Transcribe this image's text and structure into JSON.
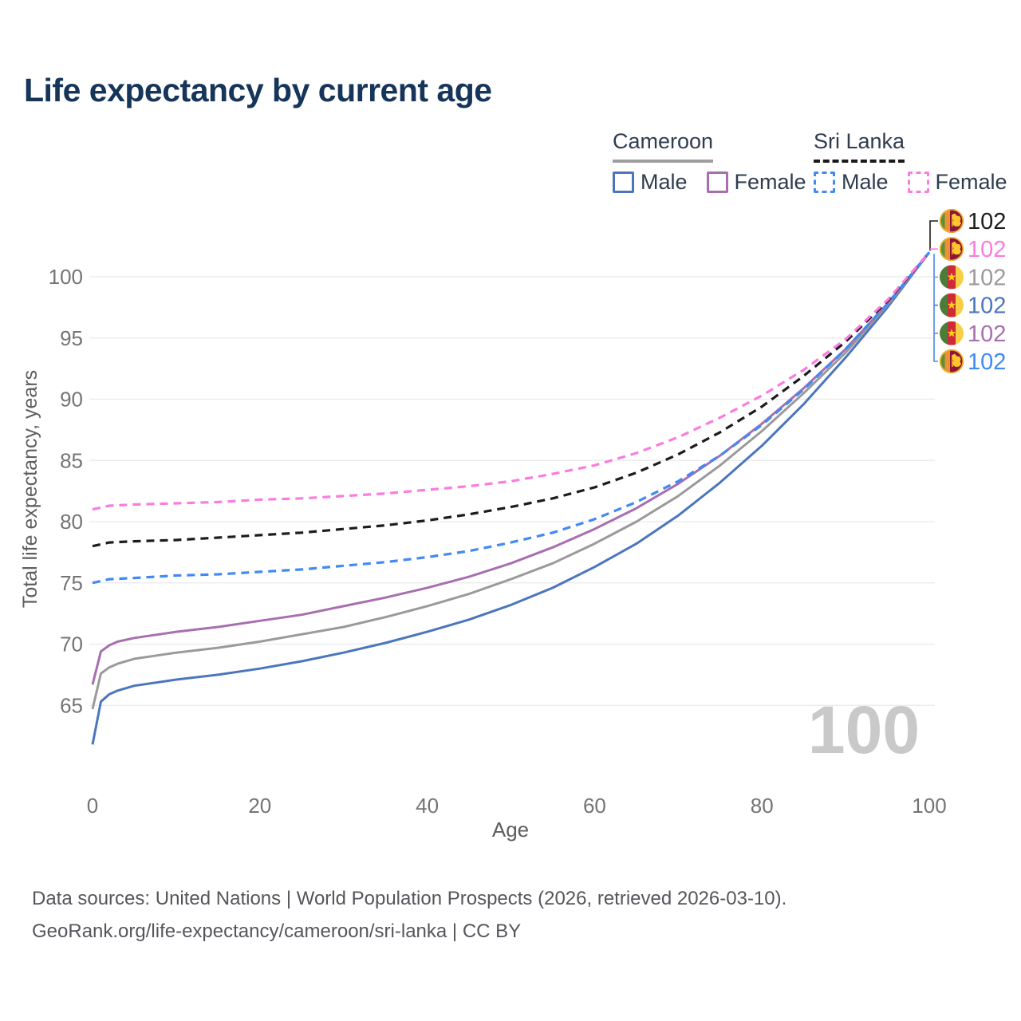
{
  "title": "Life expectancy by current age",
  "legend": {
    "groups": [
      {
        "label": "Cameroon",
        "underline_style": "solid",
        "underline_color": "#9e9e9e",
        "items": [
          {
            "label": "Male",
            "color": "#4b76bd",
            "dashed": false
          },
          {
            "label": "Female",
            "color": "#a86fb0",
            "dashed": false
          }
        ]
      },
      {
        "label": "Sri Lanka",
        "underline_style": "dashed",
        "underline_color": "#1a1a1a",
        "items": [
          {
            "label": "Male",
            "color": "#4189f5",
            "dashed": true
          },
          {
            "label": "Female",
            "color": "#fb7cdd",
            "dashed": true
          }
        ]
      }
    ]
  },
  "chart_data": {
    "type": "line",
    "title": "Life expectancy by current age",
    "xlabel": "Age",
    "ylabel": "Total life expectancy, years",
    "x_ticks": [
      0,
      20,
      40,
      60,
      80,
      100
    ],
    "y_ticks": [
      65,
      70,
      75,
      80,
      85,
      90,
      95,
      100
    ],
    "xlim": [
      0,
      100
    ],
    "ylim": [
      61,
      103
    ],
    "grid": "horizontal-only",
    "legend_position": "top-right",
    "hover_age_label": "100",
    "grid_color": "#eaeaea",
    "tick_color": "#747474",
    "axis_title_color": "#5e5e5e",
    "hover_label_color": "#c9c9c9",
    "series": [
      {
        "id": "sri-lanka-total",
        "country": "Sri Lanka",
        "sex": "Total",
        "color": "#1c1c1c",
        "dashed": true,
        "z": 5,
        "flag": "sri-lanka",
        "end_label": "102",
        "label_row": 0,
        "points": [
          [
            0,
            78.0
          ],
          [
            2,
            78.3
          ],
          [
            5,
            78.4
          ],
          [
            10,
            78.5
          ],
          [
            15,
            78.7
          ],
          [
            20,
            78.9
          ],
          [
            25,
            79.1
          ],
          [
            30,
            79.4
          ],
          [
            35,
            79.7
          ],
          [
            40,
            80.1
          ],
          [
            45,
            80.6
          ],
          [
            50,
            81.2
          ],
          [
            55,
            81.9
          ],
          [
            60,
            82.8
          ],
          [
            65,
            84.0
          ],
          [
            70,
            85.5
          ],
          [
            75,
            87.3
          ],
          [
            80,
            89.4
          ],
          [
            85,
            91.9
          ],
          [
            90,
            94.7
          ],
          [
            95,
            98.0
          ],
          [
            100,
            102
          ]
        ]
      },
      {
        "id": "sri-lanka-female",
        "country": "Sri Lanka",
        "sex": "Female",
        "color": "#fb7cdd",
        "dashed": true,
        "z": 6,
        "flag": "sri-lanka",
        "end_label": "102",
        "label_row": 1,
        "points": [
          [
            0,
            81.0
          ],
          [
            2,
            81.3
          ],
          [
            5,
            81.4
          ],
          [
            10,
            81.5
          ],
          [
            15,
            81.6
          ],
          [
            20,
            81.8
          ],
          [
            25,
            81.9
          ],
          [
            30,
            82.1
          ],
          [
            35,
            82.3
          ],
          [
            40,
            82.6
          ],
          [
            45,
            82.9
          ],
          [
            50,
            83.3
          ],
          [
            55,
            83.9
          ],
          [
            60,
            84.6
          ],
          [
            65,
            85.6
          ],
          [
            70,
            86.9
          ],
          [
            75,
            88.5
          ],
          [
            80,
            90.3
          ],
          [
            85,
            92.4
          ],
          [
            90,
            94.9
          ],
          [
            95,
            98.1
          ],
          [
            100,
            102
          ]
        ]
      },
      {
        "id": "cameroon-total",
        "country": "Cameroon",
        "sex": "Total",
        "color": "#9a9a9a",
        "dashed": false,
        "z": 2,
        "flag": "cameroon",
        "end_label": "102",
        "label_row": 2,
        "points": [
          [
            0,
            64.7
          ],
          [
            1,
            67.6
          ],
          [
            2,
            68.1
          ],
          [
            3,
            68.4
          ],
          [
            5,
            68.8
          ],
          [
            8,
            69.1
          ],
          [
            10,
            69.3
          ],
          [
            15,
            69.7
          ],
          [
            20,
            70.2
          ],
          [
            25,
            70.8
          ],
          [
            30,
            71.4
          ],
          [
            35,
            72.2
          ],
          [
            40,
            73.1
          ],
          [
            45,
            74.1
          ],
          [
            50,
            75.3
          ],
          [
            55,
            76.6
          ],
          [
            60,
            78.2
          ],
          [
            65,
            80.0
          ],
          [
            70,
            82.1
          ],
          [
            75,
            84.6
          ],
          [
            80,
            87.4
          ],
          [
            85,
            90.5
          ],
          [
            90,
            93.8
          ],
          [
            95,
            97.7
          ],
          [
            100,
            102
          ]
        ]
      },
      {
        "id": "cameroon-male",
        "country": "Cameroon",
        "sex": "Male",
        "color": "#4b76bd",
        "dashed": false,
        "z": 1,
        "flag": "cameroon",
        "end_label": "102",
        "label_row": 3,
        "points": [
          [
            0,
            61.8
          ],
          [
            1,
            65.3
          ],
          [
            2,
            65.9
          ],
          [
            3,
            66.2
          ],
          [
            5,
            66.6
          ],
          [
            8,
            66.9
          ],
          [
            10,
            67.1
          ],
          [
            15,
            67.5
          ],
          [
            20,
            68.0
          ],
          [
            25,
            68.6
          ],
          [
            30,
            69.3
          ],
          [
            35,
            70.1
          ],
          [
            40,
            71.0
          ],
          [
            45,
            72.0
          ],
          [
            50,
            73.2
          ],
          [
            55,
            74.6
          ],
          [
            60,
            76.3
          ],
          [
            65,
            78.2
          ],
          [
            70,
            80.5
          ],
          [
            75,
            83.2
          ],
          [
            80,
            86.2
          ],
          [
            85,
            89.6
          ],
          [
            90,
            93.4
          ],
          [
            95,
            97.5
          ],
          [
            100,
            102
          ]
        ]
      },
      {
        "id": "cameroon-female",
        "country": "Cameroon",
        "sex": "Female",
        "color": "#a86fb0",
        "dashed": false,
        "z": 3,
        "flag": "cameroon",
        "end_label": "102",
        "label_row": 4,
        "points": [
          [
            0,
            66.7
          ],
          [
            1,
            69.4
          ],
          [
            2,
            69.9
          ],
          [
            3,
            70.2
          ],
          [
            5,
            70.5
          ],
          [
            8,
            70.8
          ],
          [
            10,
            71.0
          ],
          [
            15,
            71.4
          ],
          [
            20,
            71.9
          ],
          [
            25,
            72.4
          ],
          [
            30,
            73.1
          ],
          [
            35,
            73.8
          ],
          [
            40,
            74.6
          ],
          [
            45,
            75.5
          ],
          [
            50,
            76.6
          ],
          [
            55,
            77.9
          ],
          [
            60,
            79.4
          ],
          [
            65,
            81.1
          ],
          [
            70,
            83.1
          ],
          [
            75,
            85.4
          ],
          [
            80,
            88.0
          ],
          [
            85,
            90.9
          ],
          [
            90,
            94.1
          ],
          [
            95,
            97.8
          ],
          [
            100,
            102
          ]
        ]
      },
      {
        "id": "sri-lanka-male",
        "country": "Sri Lanka",
        "sex": "Male",
        "color": "#4189f5",
        "dashed": true,
        "z": 4,
        "flag": "sri-lanka",
        "end_label": "102",
        "label_row": 5,
        "points": [
          [
            0,
            75.0
          ],
          [
            2,
            75.3
          ],
          [
            5,
            75.4
          ],
          [
            10,
            75.6
          ],
          [
            15,
            75.7
          ],
          [
            20,
            75.9
          ],
          [
            25,
            76.1
          ],
          [
            30,
            76.4
          ],
          [
            35,
            76.7
          ],
          [
            40,
            77.1
          ],
          [
            45,
            77.6
          ],
          [
            50,
            78.3
          ],
          [
            55,
            79.1
          ],
          [
            60,
            80.2
          ],
          [
            65,
            81.6
          ],
          [
            70,
            83.3
          ],
          [
            75,
            85.4
          ],
          [
            80,
            87.9
          ],
          [
            85,
            90.8
          ],
          [
            90,
            94.1
          ],
          [
            95,
            97.8
          ],
          [
            100,
            102
          ]
        ]
      }
    ]
  },
  "footer": {
    "line1": "Data sources: United Nations | World Population Prospects (2026, retrieved 2026-03-10).",
    "line2": "GeoRank.org/life-expectancy/cameroon/sri-lanka | CC BY"
  }
}
